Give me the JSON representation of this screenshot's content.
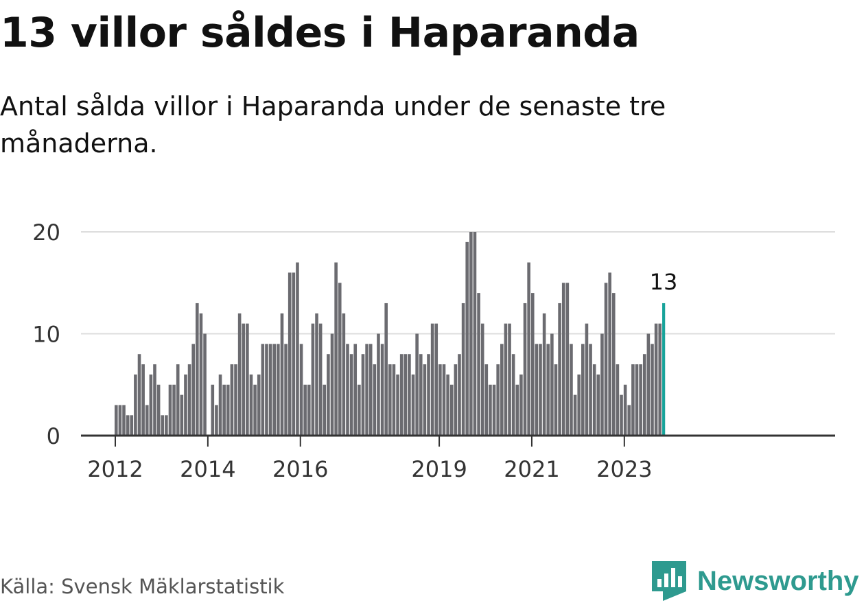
{
  "header": {
    "title": "13 villor såldes i Haparanda",
    "subtitle": "Antal sålda villor i Haparanda under de senaste tre månaderna."
  },
  "footer": {
    "source": "Källa: Svensk Mäklarstatistik",
    "brand": "Newsworthy"
  },
  "colors": {
    "bar": "#6b6b70",
    "highlight": "#17a39a",
    "grid": "#dddddd",
    "axis": "#333333",
    "brand": "#2e9a8f"
  },
  "chart_data": {
    "type": "bar",
    "title": "13 villor såldes i Haparanda",
    "xlabel": "",
    "ylabel": "",
    "ylim": [
      0,
      20
    ],
    "yticks": [
      0,
      10,
      20
    ],
    "grid": true,
    "xticks": [
      {
        "label": "2012",
        "index": 0
      },
      {
        "label": "2014",
        "index": 24
      },
      {
        "label": "2016",
        "index": 48
      },
      {
        "label": "2019",
        "index": 84
      },
      {
        "label": "2021",
        "index": 108
      },
      {
        "label": "2023",
        "index": 132
      }
    ],
    "highlight_label": "13",
    "values": [
      3,
      3,
      3,
      2,
      2,
      6,
      8,
      7,
      3,
      6,
      7,
      5,
      2,
      2,
      5,
      5,
      7,
      4,
      6,
      7,
      9,
      13,
      12,
      10,
      0,
      5,
      3,
      6,
      5,
      5,
      7,
      7,
      12,
      11,
      11,
      6,
      5,
      6,
      9,
      9,
      9,
      9,
      9,
      12,
      9,
      16,
      16,
      17,
      9,
      5,
      5,
      11,
      12,
      11,
      5,
      8,
      10,
      17,
      15,
      12,
      9,
      8,
      9,
      5,
      8,
      9,
      9,
      7,
      10,
      9,
      13,
      7,
      7,
      6,
      8,
      8,
      8,
      6,
      10,
      8,
      7,
      8,
      11,
      11,
      7,
      7,
      6,
      5,
      7,
      8,
      13,
      19,
      20,
      20,
      14,
      11,
      7,
      5,
      5,
      7,
      9,
      11,
      11,
      8,
      5,
      6,
      13,
      17,
      14,
      9,
      9,
      12,
      9,
      10,
      7,
      13,
      15,
      15,
      9,
      4,
      6,
      9,
      11,
      9,
      7,
      6,
      10,
      15,
      16,
      14,
      7,
      4,
      5,
      3,
      7,
      7,
      7,
      8,
      10,
      9,
      11,
      11,
      13
    ]
  }
}
